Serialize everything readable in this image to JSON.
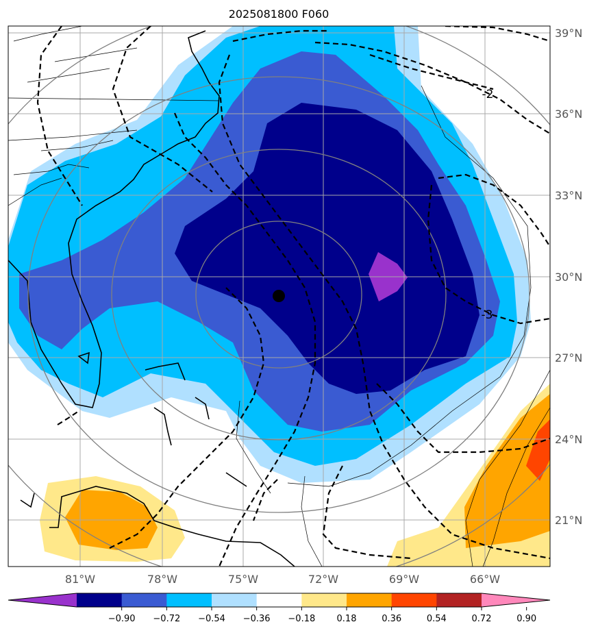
{
  "title": "2025081800 F060",
  "map": {
    "lon_labels": [
      "81°W",
      "78°W",
      "75°W",
      "72°W",
      "69°W",
      "66°W"
    ],
    "lat_labels": [
      "39°N",
      "36°N",
      "33°N",
      "30°N",
      "27°N",
      "24°N",
      "21°N"
    ],
    "contour_labels": [
      "-2",
      "-3"
    ],
    "center_marker": "storm-center"
  },
  "colorbar": {
    "ticks": [
      "−0.90",
      "−0.72",
      "−0.54",
      "−0.36",
      "−0.18",
      "0.18",
      "0.36",
      "0.54",
      "0.72",
      "0.90"
    ],
    "colors": [
      "#9932cc",
      "#00008b",
      "#3a5bd2",
      "#00bfff",
      "#b0e0ff",
      "#ffffff",
      "#ffe88a",
      "#ffa500",
      "#ff4500",
      "#b22222",
      "#ff88bb"
    ]
  }
}
